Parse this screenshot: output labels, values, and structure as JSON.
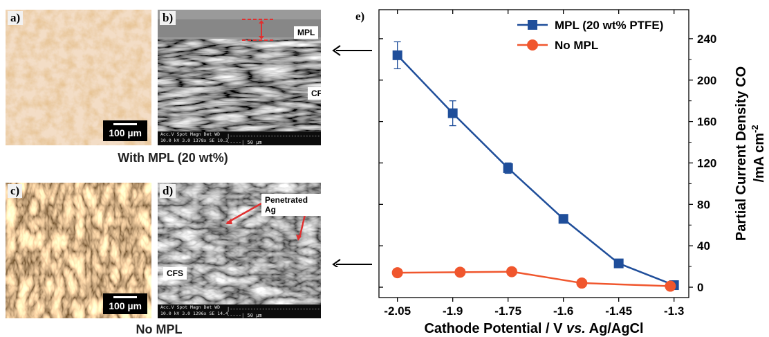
{
  "panels": {
    "a": {
      "label": "a)",
      "scale": "100 µm"
    },
    "b": {
      "label": "b)",
      "mpl_label": "MPL",
      "cfs_label": "CFS",
      "sem_line1": "Acc.V  Spot Magn    Det  WD",
      "sem_line2": "10.0 kV 3.0   1378x    SE   10.3",
      "sem_scale": "50 µm"
    },
    "caption_top": "With MPL (20 wt%)",
    "c": {
      "label": "c)",
      "scale": "100 µm"
    },
    "d": {
      "label": "d)",
      "annotation": "Penetrated Ag",
      "cfs_label": "CFS",
      "sem_line1": "Acc.V  Spot Magn    Det  WD",
      "sem_line2": "10.0 kV 3.0   1296x    SE   14.4",
      "sem_scale": "50 µm"
    },
    "caption_bottom": "No MPL",
    "e": {
      "label": "e)"
    }
  },
  "chart_data": {
    "type": "line",
    "xlabel_parts": [
      "Cathode Potential / V ",
      "vs.",
      " Ag/AgCl"
    ],
    "ylabel_line1": "Partial Current Density CO",
    "ylabel_line2": "/mA cm",
    "ylabel_sup": "-2",
    "x_ticks": [
      -2.05,
      -1.9,
      -1.75,
      -1.6,
      -1.45,
      -1.3
    ],
    "x_tick_labels": [
      "-2.05",
      "-1.9",
      "-1.75",
      "-1.6",
      "-1.45",
      "-1.3"
    ],
    "xlim": [
      -2.1,
      -1.26
    ],
    "y_ticks": [
      0,
      40,
      80,
      120,
      160,
      200,
      240
    ],
    "ylim": [
      -10,
      268
    ],
    "y_axis_side": "right",
    "legend_position": "top-right",
    "series": [
      {
        "name": "MPL (20 wt% PTFE)",
        "color": "#1f4e9a",
        "marker": "square",
        "x": [
          -2.05,
          -1.9,
          -1.75,
          -1.6,
          -1.45,
          -1.3
        ],
        "y": [
          224,
          168,
          115,
          66,
          23,
          2
        ],
        "err": [
          13,
          12,
          5,
          3,
          2,
          1
        ]
      },
      {
        "name": "No MPL",
        "color": "#f0562d",
        "marker": "circle",
        "x": [
          -2.05,
          -1.88,
          -1.74,
          -1.55,
          -1.42,
          -1.31
        ],
        "y": [
          14,
          14.5,
          15,
          4,
          null,
          1
        ],
        "err": [
          null,
          null,
          null,
          null,
          null,
          null
        ]
      }
    ]
  }
}
